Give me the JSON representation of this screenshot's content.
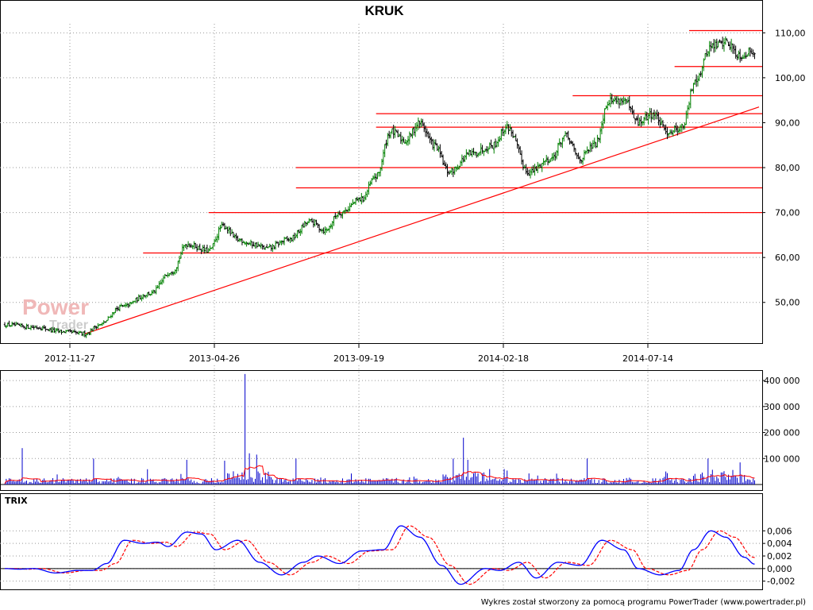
{
  "title": "KRUK",
  "watermark": {
    "line1": "Power",
    "line2": "Trader"
  },
  "credit": "Wykres został stworzony za pomocą programu PowerTrader (www.powertrader.pl)",
  "colors": {
    "up": "#008000",
    "down": "#000000",
    "trend": "#ff0000",
    "volume": "#0000cc",
    "volume_avg": "#ff0000",
    "trix": "#0000ff",
    "trix_signal": "#ff0000"
  },
  "chart_data": [
    {
      "type": "candlestick",
      "title": "KRUK",
      "x_tick_labels": [
        "2012-11-27",
        "2013-04-26",
        "2013-09-19",
        "2014-02-18",
        "2014-07-14"
      ],
      "y_tick_labels": [
        "50,00",
        "60,00",
        "70,00",
        "80,00",
        "90,00",
        "100,00",
        "110,00"
      ],
      "ylim": [
        42,
        112
      ],
      "grid": true,
      "close_keypoints": [
        {
          "t": 0,
          "v": 45
        },
        {
          "t": 20,
          "v": 44.5
        },
        {
          "t": 40,
          "v": 43.5
        },
        {
          "t": 55,
          "v": 43
        },
        {
          "t": 65,
          "v": 45
        },
        {
          "t": 80,
          "v": 49
        },
        {
          "t": 100,
          "v": 52
        },
        {
          "t": 115,
          "v": 57
        },
        {
          "t": 125,
          "v": 63
        },
        {
          "t": 140,
          "v": 61.5
        },
        {
          "t": 150,
          "v": 67
        },
        {
          "t": 160,
          "v": 64
        },
        {
          "t": 170,
          "v": 63
        },
        {
          "t": 180,
          "v": 62
        },
        {
          "t": 195,
          "v": 64
        },
        {
          "t": 210,
          "v": 68
        },
        {
          "t": 220,
          "v": 66
        },
        {
          "t": 230,
          "v": 70
        },
        {
          "t": 245,
          "v": 73
        },
        {
          "t": 255,
          "v": 78
        },
        {
          "t": 265,
          "v": 88
        },
        {
          "t": 275,
          "v": 86
        },
        {
          "t": 285,
          "v": 90
        },
        {
          "t": 295,
          "v": 85
        },
        {
          "t": 305,
          "v": 79
        },
        {
          "t": 320,
          "v": 83
        },
        {
          "t": 335,
          "v": 85
        },
        {
          "t": 345,
          "v": 89
        },
        {
          "t": 360,
          "v": 79
        },
        {
          "t": 375,
          "v": 82
        },
        {
          "t": 385,
          "v": 87
        },
        {
          "t": 395,
          "v": 82
        },
        {
          "t": 405,
          "v": 85
        },
        {
          "t": 415,
          "v": 95
        },
        {
          "t": 425,
          "v": 95
        },
        {
          "t": 435,
          "v": 90
        },
        {
          "t": 445,
          "v": 92
        },
        {
          "t": 455,
          "v": 88
        },
        {
          "t": 465,
          "v": 89
        },
        {
          "t": 475,
          "v": 100
        },
        {
          "t": 485,
          "v": 107
        },
        {
          "t": 495,
          "v": 108
        },
        {
          "t": 505,
          "v": 105
        },
        {
          "t": 515,
          "v": 106
        }
      ],
      "support_resistance_levels": [
        {
          "y": 61,
          "from_t": 95,
          "to_t": 515
        },
        {
          "y": 70,
          "from_t": 140,
          "to_t": 515
        },
        {
          "y": 75.5,
          "from_t": 200,
          "to_t": 515
        },
        {
          "y": 80,
          "from_t": 200,
          "to_t": 515
        },
        {
          "y": 89,
          "from_t": 255,
          "to_t": 515
        },
        {
          "y": 92,
          "from_t": 255,
          "to_t": 515
        },
        {
          "y": 96,
          "from_t": 390,
          "to_t": 515
        },
        {
          "y": 102.5,
          "from_t": 460,
          "to_t": 515
        },
        {
          "y": 110.5,
          "from_t": 470,
          "to_t": 515
        }
      ],
      "trendline": {
        "from": {
          "t": 55,
          "v": 43
        },
        "to": {
          "t": 518,
          "v": 93.5
        }
      }
    },
    {
      "type": "bar",
      "panel": "volume",
      "y_tick_labels": [
        "100 000",
        "200 000",
        "300 000",
        "400 000"
      ],
      "ylim": [
        0,
        440000
      ],
      "spikes": [
        {
          "t": 12,
          "v": 140000
        },
        {
          "t": 61,
          "v": 100000
        },
        {
          "t": 125,
          "v": 95000
        },
        {
          "t": 165,
          "v": 425000
        },
        {
          "t": 168,
          "v": 120000
        },
        {
          "t": 173,
          "v": 115000
        },
        {
          "t": 200,
          "v": 100000
        },
        {
          "t": 308,
          "v": 100000
        },
        {
          "t": 315,
          "v": 180000
        },
        {
          "t": 318,
          "v": 95000
        },
        {
          "t": 400,
          "v": 100000
        },
        {
          "t": 483,
          "v": 100000
        },
        {
          "t": 505,
          "v": 85000
        }
      ]
    },
    {
      "type": "line",
      "panel": "TRIX",
      "label": "TRIX",
      "y_tick_labels": [
        "-0,002",
        "0,000",
        "0,002",
        "0,004",
        "0,006"
      ],
      "ylim": [
        -0.0028,
        0.0068
      ],
      "zero_line": true,
      "trix_keypoints": [
        {
          "t": 0,
          "v": 0
        },
        {
          "t": 10,
          "v": -0.0001
        },
        {
          "t": 20,
          "v": 0
        },
        {
          "t": 35,
          "v": -0.0007
        },
        {
          "t": 50,
          "v": -0.0003
        },
        {
          "t": 60,
          "v": -0.0003
        },
        {
          "t": 70,
          "v": 0.0008
        },
        {
          "t": 82,
          "v": 0.0045
        },
        {
          "t": 95,
          "v": 0.004
        },
        {
          "t": 105,
          "v": 0.0042
        },
        {
          "t": 112,
          "v": 0.0035
        },
        {
          "t": 125,
          "v": 0.0058
        },
        {
          "t": 135,
          "v": 0.0055
        },
        {
          "t": 145,
          "v": 0.003
        },
        {
          "t": 160,
          "v": 0.0045
        },
        {
          "t": 175,
          "v": 0.001
        },
        {
          "t": 190,
          "v": -0.001
        },
        {
          "t": 205,
          "v": 0.001
        },
        {
          "t": 215,
          "v": 0.002
        },
        {
          "t": 230,
          "v": 0.0008
        },
        {
          "t": 245,
          "v": 0.0028
        },
        {
          "t": 260,
          "v": 0.003
        },
        {
          "t": 272,
          "v": 0.0068
        },
        {
          "t": 285,
          "v": 0.005
        },
        {
          "t": 300,
          "v": 0.0005
        },
        {
          "t": 313,
          "v": -0.0025
        },
        {
          "t": 330,
          "v": 0
        },
        {
          "t": 340,
          "v": -0.0003
        },
        {
          "t": 353,
          "v": 0.001
        },
        {
          "t": 365,
          "v": -0.0015
        },
        {
          "t": 380,
          "v": 0.001
        },
        {
          "t": 395,
          "v": 0.0005
        },
        {
          "t": 410,
          "v": 0.0045
        },
        {
          "t": 425,
          "v": 0.003
        },
        {
          "t": 435,
          "v": 0
        },
        {
          "t": 450,
          "v": -0.001
        },
        {
          "t": 463,
          "v": -0.0003
        },
        {
          "t": 473,
          "v": 0.003
        },
        {
          "t": 485,
          "v": 0.006
        },
        {
          "t": 495,
          "v": 0.005
        },
        {
          "t": 508,
          "v": 0.0018
        },
        {
          "t": 515,
          "v": 0.0007
        }
      ]
    }
  ]
}
